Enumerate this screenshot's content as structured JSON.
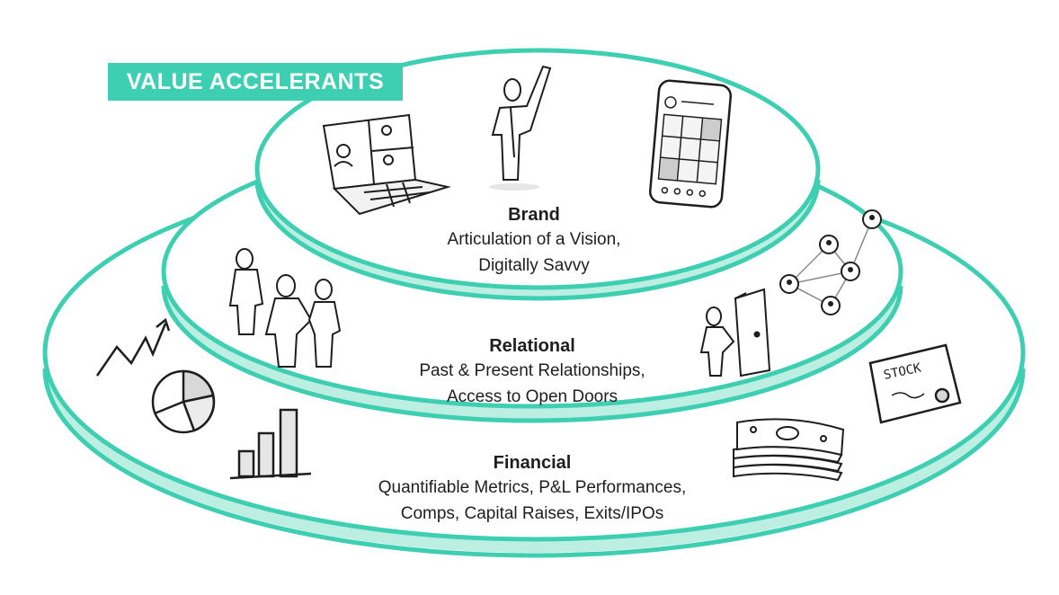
{
  "badge": {
    "label": "VALUE ACCELERANTS"
  },
  "tiers": {
    "brand": {
      "title": "Brand",
      "line1": "Articulation of a Vision,",
      "line2": "Digitally Savvy"
    },
    "relational": {
      "title": "Relational",
      "line1": "Past & Present Relationships,",
      "line2": "Access to Open Doors"
    },
    "financial": {
      "title": "Financial",
      "line1": "Quantifiable Metrics, P&L Performances,",
      "line2": "Comps, Capital Raises, Exits/IPOs"
    }
  },
  "illustrations": {
    "stock_certificate": {
      "text": "STOCK"
    }
  },
  "colors": {
    "accent": "#3ecfb2",
    "ink": "#1e1e1e"
  }
}
